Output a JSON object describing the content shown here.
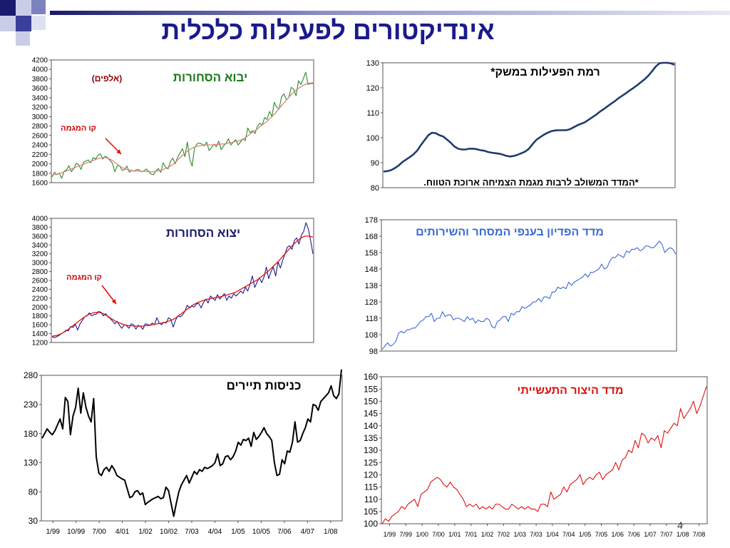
{
  "slide": {
    "title": "אינדיקטורים לפעילות כלכלית",
    "page_number": "4",
    "title_color": "#1a1a8c"
  },
  "chart_data": [
    {
      "id": "imports",
      "type": "line",
      "title": "יבוא הסחורות",
      "title_color": "#1a7a1a",
      "subtitle": "(אלפים)",
      "annotation": "קו המגמה",
      "ylim": [
        1600,
        4200
      ],
      "yticks": [
        1600,
        1800,
        2000,
        2200,
        2400,
        2600,
        2800,
        3000,
        3200,
        3400,
        3600,
        3800,
        4000,
        4200
      ],
      "grid": false,
      "series": [
        {
          "role": "actual",
          "color": "#2a8a2a",
          "values": [
            1720,
            1820,
            1770,
            1800,
            1690,
            1840,
            1870,
            1960,
            1830,
            1900,
            2010,
            1980,
            1880,
            2030,
            2060,
            2080,
            2020,
            2130,
            2100,
            2180,
            2210,
            2100,
            2160,
            2130,
            2070,
            2010,
            1830,
            1950,
            1960,
            1860,
            1880,
            1950,
            1820,
            1860,
            1840,
            1880,
            1870,
            1830,
            1850,
            1890,
            1840,
            1780,
            1770,
            1850,
            1900,
            1820,
            2020,
            1930,
            1890,
            2050,
            2120,
            2000,
            2140,
            2230,
            2320,
            2150,
            2460,
            2090,
            1950,
            2340,
            2420,
            2440,
            2420,
            2380,
            2460,
            2280,
            2340,
            2420,
            2360,
            2480,
            2300,
            2380,
            2430,
            2530,
            2400,
            2460,
            2510,
            2400,
            2460,
            2530,
            2490,
            2760,
            2660,
            2700,
            2640,
            2790,
            2860,
            2820,
            2980,
            2940,
            3110,
            3000,
            3300,
            3200,
            3160,
            3420,
            3480,
            3360,
            3400,
            3620,
            3580,
            3440,
            3760,
            3680,
            3800,
            3940,
            3680,
            3700,
            3700
          ]
        },
        {
          "role": "trend",
          "color": "#e08080",
          "values": [
            1760,
            1770,
            1780,
            1800,
            1810,
            1830,
            1850,
            1870,
            1890,
            1910,
            1930,
            1950,
            1970,
            1990,
            2010,
            2030,
            2050,
            2070,
            2090,
            2110,
            2120,
            2130,
            2130,
            2120,
            2100,
            2070,
            2030,
            1990,
            1950,
            1920,
            1900,
            1880,
            1870,
            1860,
            1850,
            1850,
            1850,
            1840,
            1840,
            1840,
            1830,
            1830,
            1830,
            1840,
            1850,
            1860,
            1880,
            1900,
            1920,
            1950,
            1990,
            2030,
            2080,
            2130,
            2180,
            2220,
            2260,
            2300,
            2330,
            2350,
            2370,
            2380,
            2390,
            2400,
            2400,
            2400,
            2400,
            2400,
            2410,
            2410,
            2420,
            2420,
            2430,
            2440,
            2450,
            2460,
            2470,
            2480,
            2500,
            2520,
            2550,
            2590,
            2630,
            2670,
            2700,
            2740,
            2780,
            2820,
            2860,
            2900,
            2950,
            3000,
            3050,
            3110,
            3170,
            3230,
            3290,
            3350,
            3410,
            3470,
            3520,
            3560,
            3600,
            3630,
            3660,
            3690,
            3700,
            3710,
            3720
          ]
        }
      ]
    },
    {
      "id": "activity",
      "type": "line",
      "title": "רמת הפעילות במשק*",
      "footnote": "*המדד המשולב לרבות מגמת הצמיחה ארוכת הטווח.",
      "ylim": [
        80,
        130
      ],
      "yticks": [
        80,
        90,
        100,
        110,
        120,
        130
      ],
      "grid": false,
      "series": [
        {
          "role": "actual",
          "color": "#1f3b6e",
          "values": [
            86.5,
            86.6,
            87.0,
            87.8,
            88.8,
            90.2,
            91.2,
            92.2,
            93.3,
            94.8,
            97.0,
            99.0,
            101.0,
            102.0,
            101.8,
            101.0,
            100.5,
            99.3,
            98.0,
            96.5,
            95.6,
            95.3,
            95.3,
            95.6,
            95.6,
            95.4,
            95.0,
            94.8,
            94.3,
            94.0,
            93.8,
            93.6,
            93.2,
            92.7,
            92.5,
            92.7,
            93.2,
            93.8,
            94.5,
            95.6,
            97.5,
            99.2,
            100.2,
            101.2,
            102.0,
            102.6,
            102.9,
            103.0,
            103.0,
            103.0,
            103.4,
            104.2,
            105.0,
            105.6,
            106.2,
            107.2,
            108.2,
            109.2,
            110.4,
            111.4,
            112.5,
            113.6,
            114.6,
            115.8,
            116.8,
            117.8,
            118.9,
            119.9,
            121.0,
            122.2,
            123.4,
            124.8,
            126.6,
            128.5,
            129.8,
            130.0,
            130.0,
            129.8,
            129.2
          ]
        }
      ]
    },
    {
      "id": "exports",
      "type": "line",
      "title": "יצוא הסחורות",
      "title_color": "#1a1a6e",
      "annotation": "קו המגמה",
      "ylim": [
        1200,
        4000
      ],
      "yticks": [
        1200,
        1400,
        1600,
        1800,
        2000,
        2200,
        2400,
        2600,
        2800,
        3000,
        3200,
        3400,
        3600,
        3800,
        4000
      ],
      "grid": false,
      "series": [
        {
          "role": "actual",
          "color": "#1a1a8c",
          "values": [
            1330,
            1310,
            1330,
            1360,
            1400,
            1430,
            1480,
            1460,
            1560,
            1540,
            1610,
            1480,
            1620,
            1700,
            1780,
            1800,
            1870,
            1800,
            1830,
            1840,
            1900,
            1880,
            1800,
            1850,
            1780,
            1740,
            1680,
            1620,
            1680,
            1580,
            1520,
            1600,
            1580,
            1520,
            1620,
            1600,
            1500,
            1590,
            1560,
            1500,
            1620,
            1610,
            1580,
            1640,
            1600,
            1760,
            1640,
            1600,
            1660,
            1640,
            1760,
            1720,
            1550,
            1700,
            1800,
            1780,
            1820,
            1900,
            2040,
            1980,
            2020,
            2000,
            2070,
            2080,
            1980,
            2100,
            2180,
            2090,
            2250,
            2200,
            2150,
            2280,
            2180,
            2240,
            2300,
            2150,
            2250,
            2200,
            2300,
            2250,
            2300,
            2360,
            2310,
            2450,
            2360,
            2520,
            2700,
            2440,
            2560,
            2660,
            2550,
            2680,
            2900,
            2640,
            2800,
            2900,
            2700,
            3020,
            2880,
            3050,
            3200,
            3350,
            3380,
            3300,
            3500,
            3560,
            3420,
            3620,
            3700,
            3900,
            3760,
            3500,
            3200
          ]
        },
        {
          "role": "trend",
          "color": "#e01010",
          "values": [
            1340,
            1350,
            1360,
            1380,
            1400,
            1430,
            1460,
            1500,
            1540,
            1580,
            1620,
            1660,
            1700,
            1740,
            1780,
            1810,
            1840,
            1860,
            1870,
            1880,
            1880,
            1870,
            1850,
            1820,
            1790,
            1750,
            1720,
            1690,
            1660,
            1640,
            1620,
            1600,
            1590,
            1580,
            1580,
            1570,
            1570,
            1570,
            1570,
            1570,
            1580,
            1580,
            1590,
            1600,
            1610,
            1620,
            1630,
            1640,
            1650,
            1660,
            1680,
            1700,
            1720,
            1750,
            1790,
            1830,
            1870,
            1910,
            1950,
            1990,
            2030,
            2060,
            2090,
            2110,
            2130,
            2150,
            2160,
            2180,
            2190,
            2200,
            2210,
            2220,
            2230,
            2240,
            2260,
            2270,
            2290,
            2300,
            2320,
            2340,
            2370,
            2400,
            2430,
            2460,
            2490,
            2520,
            2550,
            2580,
            2610,
            2650,
            2690,
            2730,
            2770,
            2820,
            2870,
            2920,
            2970,
            3020,
            3080,
            3140,
            3200,
            3260,
            3320,
            3380,
            3430,
            3480,
            3520,
            3560,
            3590,
            3600,
            3600,
            3590,
            3580
          ]
        }
      ]
    },
    {
      "id": "revenue",
      "type": "line",
      "title": "מדד הפדיון בענפי המסחר והשירותים",
      "title_color": "#3a6ad8",
      "ylim": [
        98,
        178
      ],
      "yticks": [
        98,
        108,
        118,
        128,
        138,
        148,
        158,
        168,
        178
      ],
      "grid": false,
      "series": [
        {
          "role": "actual",
          "color": "#3a6ad8",
          "values": [
            99,
            101,
            103,
            101,
            102,
            104,
            109,
            110,
            109,
            111,
            111,
            112,
            112,
            114,
            116,
            117,
            119,
            119,
            121,
            116,
            118,
            118,
            122,
            119,
            120,
            120,
            117,
            118,
            118,
            117,
            116,
            119,
            117,
            118,
            115,
            117,
            116,
            116,
            118,
            117,
            113,
            112,
            116,
            117,
            119,
            119,
            116,
            121,
            120,
            122,
            122,
            125,
            124,
            125,
            126,
            128,
            128,
            130,
            128,
            131,
            131,
            130,
            134,
            134,
            137,
            136,
            137,
            136,
            140,
            138,
            140,
            141,
            142,
            143,
            145,
            143,
            146,
            146,
            147,
            148,
            151,
            148,
            149,
            153,
            155,
            155,
            157,
            156,
            155,
            159,
            158,
            160,
            160,
            161,
            159,
            160,
            162,
            162,
            161,
            161,
            163,
            165,
            163,
            158,
            160,
            161,
            160,
            157
          ]
        }
      ]
    },
    {
      "id": "tourists",
      "type": "line",
      "title": "כניסות תיירים",
      "ylim": [
        30,
        280
      ],
      "yticks": [
        30,
        80,
        130,
        180,
        230,
        280
      ],
      "xticks": [
        "1/99",
        "10/99",
        "7/00",
        "4/01",
        "1/02",
        "10/02",
        "7/03",
        "4/04",
        "1/05",
        "10/05",
        "7/06",
        "4/07",
        "1/08"
      ],
      "grid": false,
      "series": [
        {
          "role": "actual",
          "color": "#000000",
          "values": [
            172,
            180,
            188,
            182,
            178,
            185,
            195,
            205,
            188,
            242,
            235,
            178,
            210,
            225,
            258,
            215,
            250,
            225,
            210,
            200,
            240,
            140,
            112,
            108,
            118,
            122,
            115,
            125,
            118,
            108,
            105,
            102,
            100,
            85,
            70,
            72,
            80,
            82,
            75,
            78,
            58,
            62,
            65,
            68,
            70,
            72,
            68,
            70,
            88,
            82,
            60,
            38,
            60,
            80,
            92,
            100,
            108,
            95,
            105,
            115,
            110,
            118,
            115,
            122,
            120,
            122,
            125,
            130,
            145,
            125,
            128,
            140,
            142,
            135,
            140,
            150,
            165,
            160,
            170,
            168,
            172,
            158,
            182,
            170,
            175,
            182,
            190,
            180,
            175,
            168,
            130,
            108,
            110,
            135,
            128,
            150,
            148,
            165,
            200,
            165,
            168,
            180,
            190,
            205,
            200,
            230,
            228,
            220,
            235,
            240,
            245,
            250,
            262,
            245,
            240,
            248,
            290
          ]
        }
      ]
    },
    {
      "id": "industry",
      "type": "line",
      "title": "מדד היצור התעשייתי",
      "title_color": "#e01010",
      "ylim": [
        100,
        160
      ],
      "yticks": [
        100,
        105,
        110,
        115,
        120,
        125,
        130,
        135,
        140,
        145,
        150,
        155,
        160
      ],
      "xticks": [
        "1/99",
        "7/99",
        "1/00",
        "7/00",
        "1/01",
        "7/01",
        "1/02",
        "7/02",
        "1/03",
        "7/03",
        "1/04",
        "7/04",
        "1/05",
        "7/05",
        "1/06",
        "7/06",
        "1/07",
        "7/07",
        "1/08",
        "7/08"
      ],
      "grid": false,
      "series": [
        {
          "role": "actual",
          "color": "#e01010",
          "values": [
            100,
            102,
            101,
            103,
            104,
            105,
            107,
            106,
            108,
            109,
            110,
            107,
            112,
            113,
            114,
            117,
            118,
            119,
            118,
            116,
            115,
            117,
            115,
            114,
            112,
            110,
            107,
            108,
            107,
            108,
            106,
            107,
            106,
            107,
            106,
            108,
            108,
            107,
            106,
            106,
            108,
            107,
            106,
            107,
            106,
            107,
            106,
            106,
            105,
            108,
            108,
            107,
            113,
            110,
            111,
            112,
            115,
            113,
            116,
            117,
            118,
            120,
            116,
            118,
            119,
            118,
            120,
            121,
            118,
            120,
            121,
            122,
            125,
            122,
            126,
            127,
            130,
            129,
            134,
            131,
            137,
            136,
            133,
            135,
            134,
            136,
            131,
            138,
            137,
            139,
            141,
            140,
            147,
            143,
            145,
            147,
            150,
            145,
            148,
            152,
            156
          ]
        }
      ]
    }
  ]
}
